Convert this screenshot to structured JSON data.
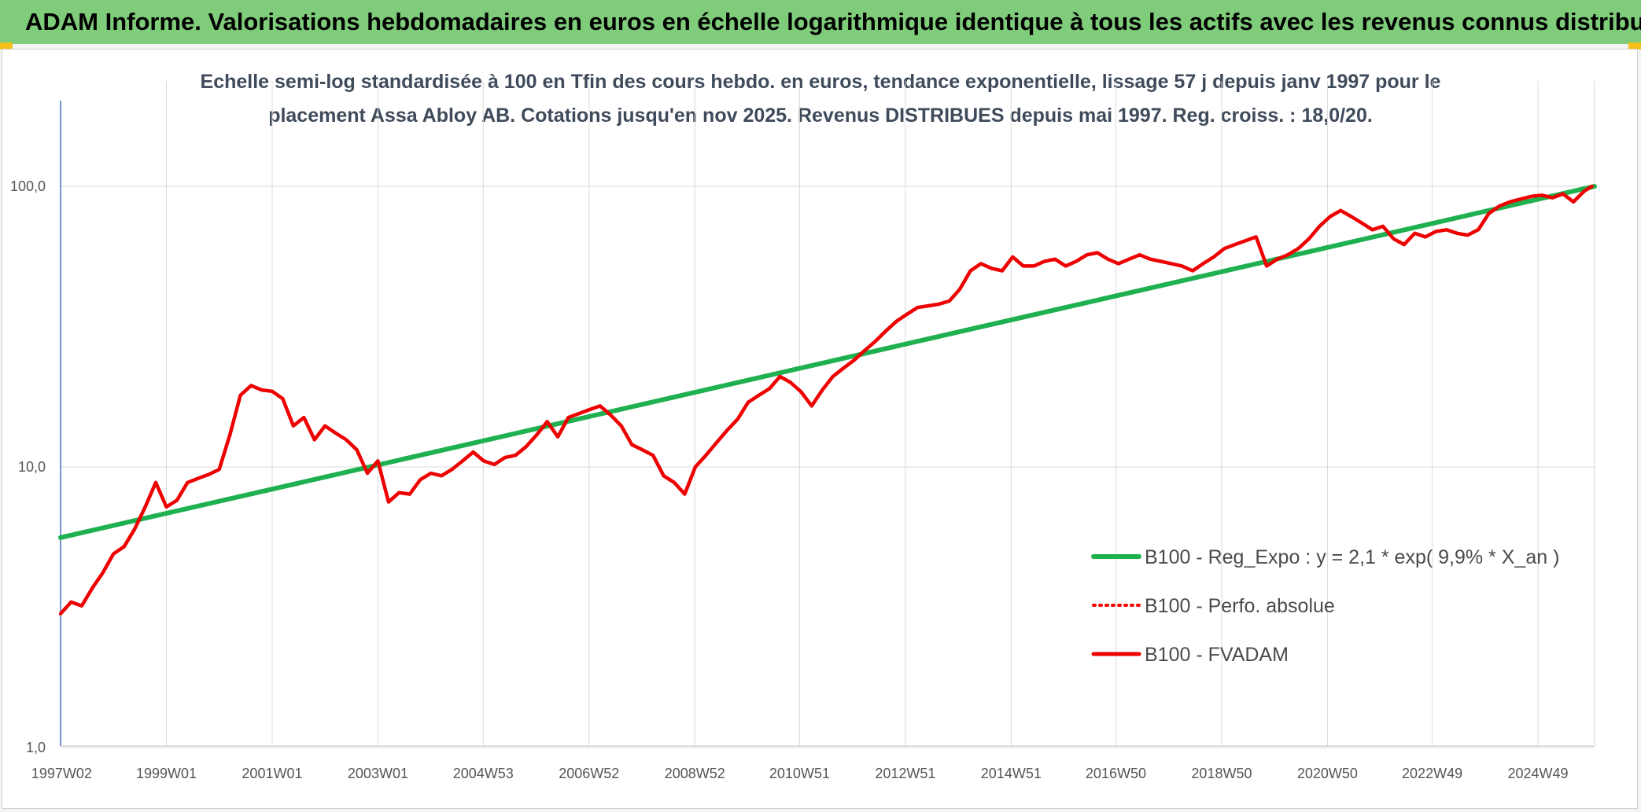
{
  "header": {
    "title": "ADAM Informe. Valorisations hebdomadaires en euros en échelle logarithmique identique à tous les actifs avec les revenus connus distribués",
    "background_color": "#7fcc7a",
    "corner_color": "#f2c018"
  },
  "chart_data": {
    "type": "line",
    "title_line1": "Echelle semi-log standardisée à 100 en Tfin des cours hebdo. en euros, tendance exponentielle, lissage 57 j depuis janv 1997 pour le",
    "title_line2": "placement Assa Abloy AB. Cotations jusqu'en nov 2025. Revenus DISTRIBUES depuis mai 1997. Reg. croiss. : 18,0/20.",
    "y_scale": "log",
    "ylim": [
      1,
      200
    ],
    "xlim": [
      1997.0,
      2026.0
    ],
    "y_ticks": [
      {
        "value": 1,
        "label": "1,0"
      },
      {
        "value": 10,
        "label": "10,0"
      },
      {
        "value": 100,
        "label": "100,0"
      }
    ],
    "x_ticks": [
      {
        "value": 1997.02,
        "label": "1997W02"
      },
      {
        "value": 1999.0,
        "label": "1999W01"
      },
      {
        "value": 2001.0,
        "label": "2001W01"
      },
      {
        "value": 2003.0,
        "label": "2003W01"
      },
      {
        "value": 2004.99,
        "label": "2004W53"
      },
      {
        "value": 2006.99,
        "label": "2006W52"
      },
      {
        "value": 2008.99,
        "label": "2008W52"
      },
      {
        "value": 2010.97,
        "label": "2010W51"
      },
      {
        "value": 2012.97,
        "label": "2012W51"
      },
      {
        "value": 2014.97,
        "label": "2014W51"
      },
      {
        "value": 2016.95,
        "label": "2016W50"
      },
      {
        "value": 2018.95,
        "label": "2018W50"
      },
      {
        "value": 2020.95,
        "label": "2020W50"
      },
      {
        "value": 2022.93,
        "label": "2022W49"
      },
      {
        "value": 2024.93,
        "label": "2024W49"
      }
    ],
    "grid": true,
    "legend_position": "bottom-right",
    "series": [
      {
        "name": "B100 - Reg_Expo : y = 2,1 * exp( 9,9% *  X_an )",
        "color": "#1fb04f",
        "style": "solid",
        "x": [
          1997.0,
          2026.0
        ],
        "y": [
          5.6,
          100.0
        ]
      },
      {
        "name": "B100 - Perfo. absolue",
        "color": "#ff0000",
        "style": "dotted",
        "x": [],
        "y": []
      },
      {
        "name": "B100 - FVADAM",
        "color": "#ee0000",
        "style": "solid",
        "x": [
          1997.0,
          1997.2,
          1997.4,
          1997.6,
          1997.8,
          1998.0,
          1998.2,
          1998.4,
          1998.6,
          1998.8,
          1999.0,
          1999.2,
          1999.4,
          1999.6,
          1999.8,
          2000.0,
          2000.2,
          2000.4,
          2000.6,
          2000.8,
          2001.0,
          2001.2,
          2001.4,
          2001.6,
          2001.8,
          2002.0,
          2002.2,
          2002.4,
          2002.6,
          2002.8,
          2003.0,
          2003.2,
          2003.4,
          2003.6,
          2003.8,
          2004.0,
          2004.2,
          2004.4,
          2004.6,
          2004.8,
          2005.0,
          2005.2,
          2005.4,
          2005.6,
          2005.8,
          2006.0,
          2006.2,
          2006.4,
          2006.6,
          2006.8,
          2007.0,
          2007.2,
          2007.4,
          2007.6,
          2007.8,
          2008.0,
          2008.2,
          2008.4,
          2008.6,
          2008.8,
          2009.0,
          2009.2,
          2009.4,
          2009.6,
          2009.8,
          2010.0,
          2010.2,
          2010.4,
          2010.6,
          2010.8,
          2011.0,
          2011.2,
          2011.4,
          2011.6,
          2011.8,
          2012.0,
          2012.2,
          2012.4,
          2012.6,
          2012.8,
          2013.0,
          2013.2,
          2013.4,
          2013.6,
          2013.8,
          2014.0,
          2014.2,
          2014.4,
          2014.6,
          2014.8,
          2015.0,
          2015.2,
          2015.4,
          2015.6,
          2015.8,
          2016.0,
          2016.2,
          2016.4,
          2016.6,
          2016.8,
          2017.0,
          2017.2,
          2017.4,
          2017.6,
          2017.8,
          2018.0,
          2018.2,
          2018.4,
          2018.6,
          2018.8,
          2019.0,
          2019.2,
          2019.4,
          2019.6,
          2019.8,
          2020.0,
          2020.2,
          2020.4,
          2020.6,
          2020.8,
          2021.0,
          2021.2,
          2021.4,
          2021.6,
          2021.8,
          2022.0,
          2022.2,
          2022.4,
          2022.6,
          2022.8,
          2023.0,
          2023.2,
          2023.4,
          2023.6,
          2023.8,
          2024.0,
          2024.2,
          2024.4,
          2024.6,
          2024.8,
          2025.0,
          2025.2,
          2025.4,
          2025.6,
          2025.8,
          2025.95
        ],
        "y": [
          3.0,
          3.3,
          3.2,
          3.7,
          4.2,
          4.9,
          5.2,
          6.0,
          7.2,
          8.8,
          7.2,
          7.6,
          8.8,
          9.1,
          9.4,
          9.8,
          13.0,
          18.0,
          19.5,
          18.8,
          18.6,
          17.5,
          14.0,
          15.0,
          12.5,
          14.0,
          13.2,
          12.5,
          11.5,
          9.5,
          10.5,
          7.5,
          8.1,
          8.0,
          9.0,
          9.5,
          9.3,
          9.8,
          10.5,
          11.3,
          10.5,
          10.2,
          10.8,
          11.0,
          11.8,
          13.0,
          14.5,
          12.8,
          15.0,
          15.5,
          16.0,
          16.5,
          15.3,
          14.0,
          12.0,
          11.5,
          11.0,
          9.3,
          8.8,
          8.0,
          10.0,
          11.0,
          12.2,
          13.5,
          14.8,
          17.0,
          18.0,
          19.0,
          21.0,
          20.0,
          18.5,
          16.5,
          18.8,
          21.0,
          22.5,
          24.0,
          26.0,
          28.0,
          30.5,
          33.0,
          35.0,
          37.0,
          37.5,
          38.0,
          39.0,
          43.0,
          50.0,
          53.0,
          51.0,
          50.0,
          56.0,
          52.0,
          52.0,
          54.0,
          55.0,
          52.0,
          54.0,
          57.0,
          58.0,
          55.0,
          53.0,
          55.0,
          57.0,
          55.0,
          54.0,
          53.0,
          52.0,
          50.0,
          53.0,
          56.0,
          60.0,
          62.0,
          64.0,
          66.0,
          52.0,
          55.0,
          57.0,
          60.0,
          65.0,
          72.0,
          78.0,
          82.0,
          78.0,
          74.0,
          70.0,
          72.0,
          65.0,
          62.0,
          68.0,
          66.0,
          69.0,
          70.0,
          68.0,
          67.0,
          70.0,
          80.0,
          85.0,
          88.0,
          90.0,
          92.0,
          93.0,
          91.0,
          94.0,
          88.0,
          96.0,
          100.0
        ]
      }
    ]
  }
}
